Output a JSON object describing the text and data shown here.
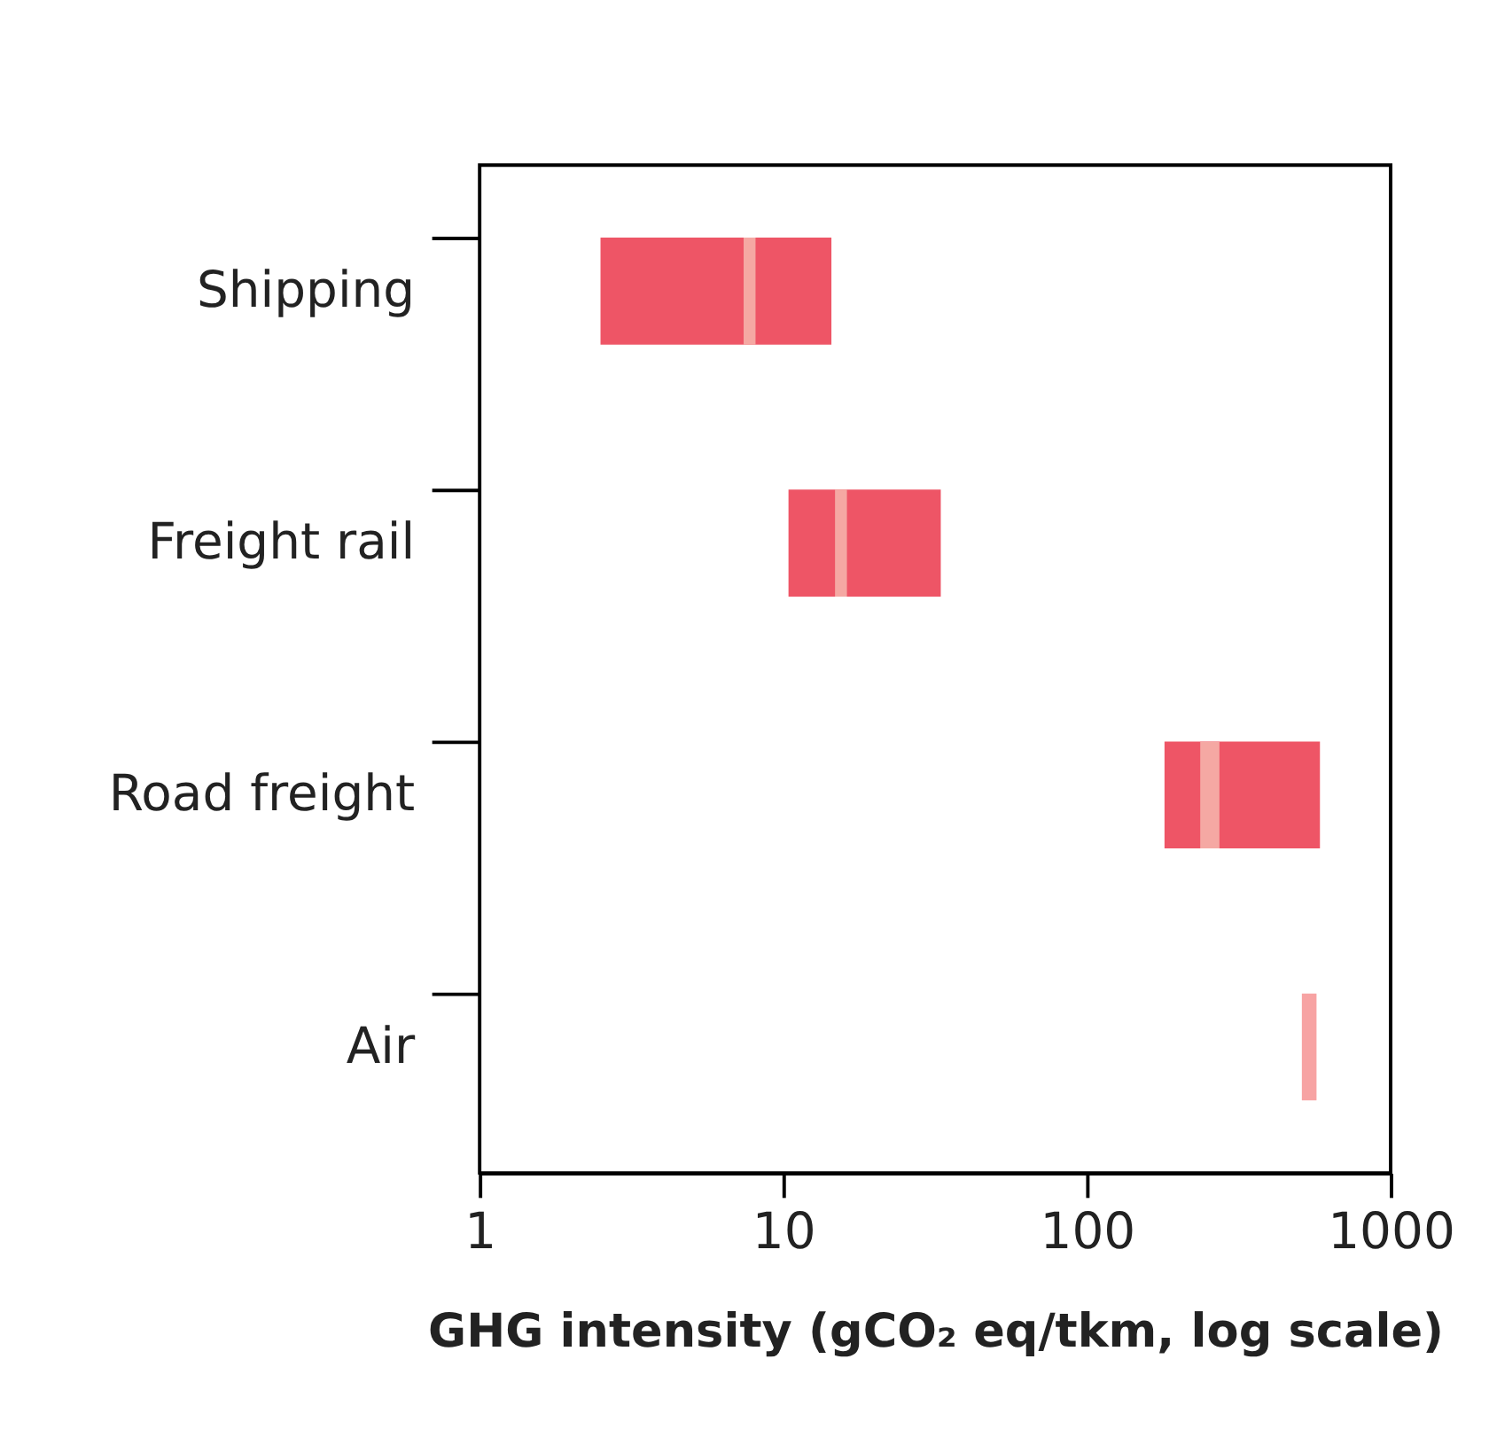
{
  "chart_data": {
    "type": "bar",
    "orientation": "horizontal",
    "log": "x",
    "xlabel": "GHG intensity (gCO₂ eq/tkm, log scale)",
    "categories": [
      "Shipping",
      "Freight rail",
      "Road freight",
      "Air"
    ],
    "series": [
      {
        "type": "bar",
        "base": [
          2.5,
          10.4,
          180,
          510
        ],
        "values": [
          11.9,
          22.6,
          405,
          60
        ],
        "colors": [
          "#ee5566",
          "#ee5566",
          "#ee5566",
          "#f7a3a3"
        ]
      },
      {
        "type": "bar",
        "color": "#f5a8a3",
        "base": [
          7.4,
          14.8,
          236,
          null
        ],
        "values": [
          0.7,
          1.4,
          37,
          null
        ]
      }
    ],
    "xlim": [
      1,
      1000
    ],
    "xticks": [
      1,
      10,
      100,
      1000
    ],
    "grid": false
  }
}
